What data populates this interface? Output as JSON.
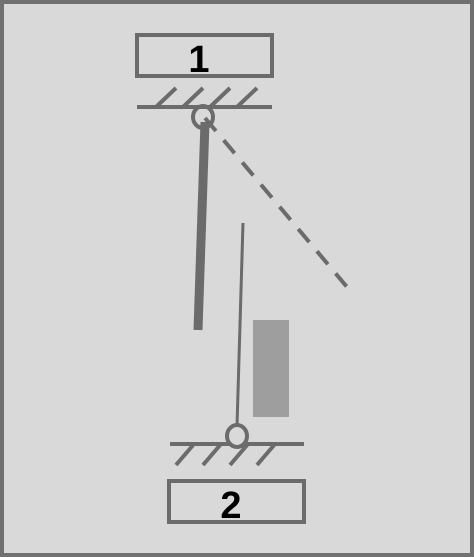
{
  "support_top": {
    "label": "1"
  },
  "support_bottom": {
    "label": "2"
  },
  "colors": {
    "background": "#d9d9d9",
    "frame": "#707070",
    "stroke": "#6b6b6b",
    "block": "#9e9e9e",
    "label": "#000000"
  },
  "icons": {
    "top_pivot": "pivot-hinge-icon",
    "bottom_pivot": "pivot-hinge-icon",
    "top_hatch": "fixed-support-hatch-icon",
    "bottom_hatch": "fixed-support-hatch-icon"
  }
}
